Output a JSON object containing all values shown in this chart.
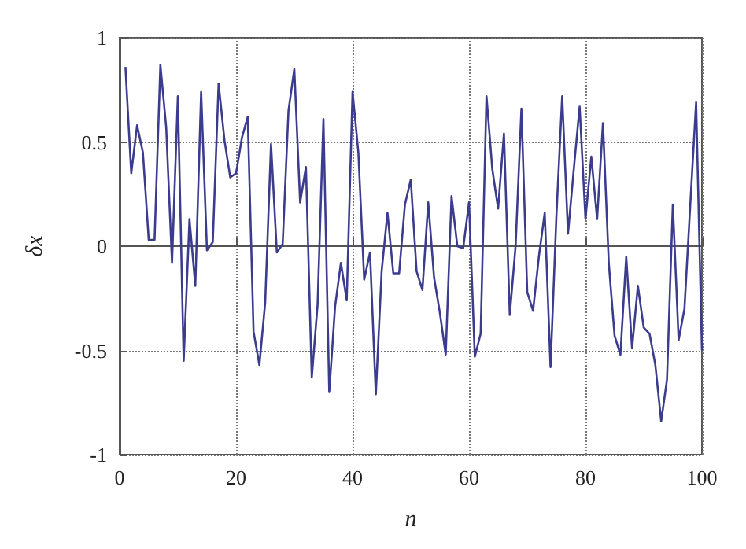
{
  "chart_data": {
    "type": "line",
    "xlabel": "n",
    "ylabel": "δx",
    "xlim": [
      0,
      100
    ],
    "xticks": [
      0,
      20,
      40,
      60,
      80,
      100
    ],
    "ylim": [
      -1,
      1
    ],
    "yticks": [
      -1,
      -0.5,
      0,
      0.5,
      1
    ],
    "grid": true,
    "marker": "none",
    "line_style": "solid",
    "x": [
      1,
      2,
      3,
      4,
      5,
      6,
      7,
      8,
      9,
      10,
      11,
      12,
      13,
      14,
      15,
      16,
      17,
      18,
      19,
      20,
      21,
      22,
      23,
      24,
      25,
      26,
      27,
      28,
      29,
      30,
      31,
      32,
      33,
      34,
      35,
      36,
      37,
      38,
      39,
      40,
      41,
      42,
      43,
      44,
      45,
      46,
      47,
      48,
      49,
      50,
      51,
      52,
      53,
      54,
      55,
      56,
      57,
      58,
      59,
      60,
      61,
      62,
      63,
      64,
      65,
      66,
      67,
      68,
      69,
      70,
      71,
      72,
      73,
      74,
      75,
      76,
      77,
      78,
      79,
      80,
      81,
      82,
      83,
      84,
      85,
      86,
      87,
      88,
      89,
      90,
      91,
      92,
      93,
      94,
      95,
      96,
      97,
      98,
      99,
      100
    ],
    "series": [
      {
        "color": "#3c3c8e",
        "values": [
          0.86,
          0.35,
          0.58,
          0.45,
          0.03,
          0.03,
          0.87,
          0.57,
          -0.08,
          0.72,
          -0.55,
          0.13,
          -0.19,
          0.74,
          -0.02,
          0.02,
          0.78,
          0.51,
          0.33,
          0.35,
          0.52,
          0.62,
          -0.41,
          -0.57,
          -0.27,
          0.49,
          -0.03,
          0.01,
          0.65,
          0.85,
          0.21,
          0.38,
          -0.63,
          -0.28,
          0.61,
          -0.7,
          -0.29,
          -0.08,
          -0.26,
          0.74,
          0.45,
          -0.16,
          -0.03,
          -0.71,
          -0.12,
          0.16,
          -0.13,
          -0.13,
          0.2,
          0.32,
          -0.12,
          -0.21,
          0.21,
          -0.15,
          -0.32,
          -0.52,
          0.24,
          0.0,
          -0.01,
          0.21,
          -0.53,
          -0.42,
          0.72,
          0.37,
          0.18,
          0.54,
          -0.33,
          0.0,
          0.66,
          -0.22,
          -0.31,
          -0.05,
          0.16,
          -0.58,
          0.14,
          0.72,
          0.06,
          0.37,
          0.67,
          0.13,
          0.43,
          0.13,
          0.59,
          -0.08,
          -0.43,
          -0.52,
          -0.05,
          -0.49,
          -0.19,
          -0.39,
          -0.42,
          -0.57,
          -0.84,
          -0.64,
          0.2,
          -0.45,
          -0.3,
          0.2,
          0.69,
          -0.5
        ]
      }
    ]
  }
}
